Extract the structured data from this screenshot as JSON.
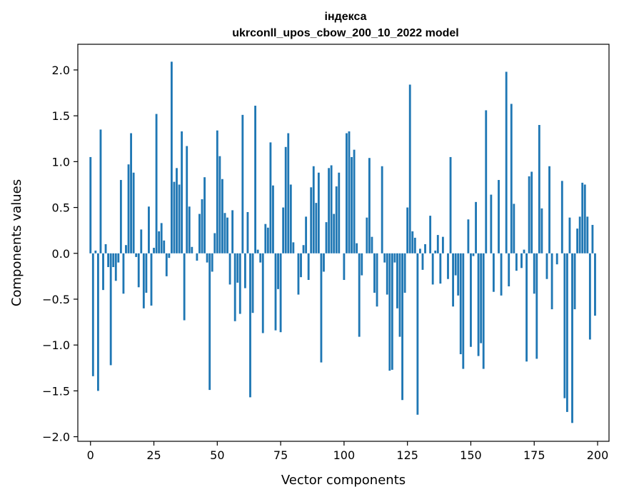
{
  "chart_data": {
    "type": "bar",
    "title_line1": "індекса",
    "title_line2": "ukrconll_upos_cbow_200_10_2022 model",
    "xlabel": "Vector components",
    "ylabel": "Components values",
    "xlim": [
      -5,
      204.5
    ],
    "ylim": [
      -2.05,
      2.28
    ],
    "xticks": [
      0,
      25,
      50,
      75,
      100,
      125,
      150,
      175,
      200
    ],
    "yticks": [
      -2.0,
      -1.5,
      -1.0,
      -0.5,
      0.0,
      0.5,
      1.0,
      1.5,
      2.0
    ],
    "ytick_labels": [
      "−2.0",
      "−1.5",
      "−1.0",
      "−0.5",
      "0.0",
      "0.5",
      "1.0",
      "1.5",
      "2.0"
    ],
    "bar_color": "#1f77b4",
    "grid": false,
    "values": [
      1.05,
      -1.34,
      0.03,
      -1.5,
      1.35,
      -0.4,
      0.1,
      -0.15,
      -1.22,
      -0.15,
      -0.3,
      -0.1,
      0.8,
      -0.44,
      0.09,
      0.97,
      1.31,
      0.88,
      -0.04,
      -0.37,
      0.26,
      -0.6,
      -0.43,
      0.51,
      -0.57,
      0.06,
      1.52,
      0.24,
      0.33,
      0.14,
      -0.25,
      -0.05,
      2.09,
      0.78,
      0.93,
      0.75,
      1.33,
      -0.73,
      1.17,
      0.51,
      0.07,
      0.0,
      -0.08,
      0.43,
      0.59,
      0.83,
      -0.1,
      -1.49,
      -0.2,
      0.22,
      1.34,
      1.06,
      0.81,
      0.44,
      0.39,
      -0.34,
      0.47,
      -0.74,
      -0.32,
      -0.66,
      1.51,
      -0.38,
      0.45,
      -1.57,
      -0.65,
      1.61,
      0.04,
      -0.1,
      -0.87,
      0.32,
      0.28,
      1.21,
      0.74,
      -0.84,
      -0.39,
      -0.86,
      0.5,
      1.16,
      1.31,
      0.75,
      0.12,
      0.0,
      -0.45,
      -0.26,
      0.09,
      0.4,
      -0.29,
      0.72,
      0.95,
      0.55,
      0.88,
      -1.19,
      -0.2,
      0.34,
      0.93,
      0.96,
      0.43,
      0.73,
      0.88,
      0.0,
      -0.29,
      1.31,
      1.33,
      1.05,
      1.13,
      0.11,
      -0.91,
      -0.24,
      0.0,
      0.39,
      1.04,
      0.18,
      -0.43,
      -0.58,
      0.0,
      0.95,
      -0.1,
      -0.45,
      -1.28,
      -1.27,
      -0.1,
      -0.6,
      -0.91,
      -1.6,
      -0.43,
      0.5,
      1.84,
      0.24,
      0.17,
      -1.76,
      0.05,
      -0.18,
      0.1,
      0.0,
      0.41,
      -0.34,
      0.03,
      0.2,
      -0.33,
      0.18,
      0.0,
      -0.28,
      1.05,
      -0.58,
      -0.24,
      -0.46,
      -1.1,
      -1.26,
      0.0,
      0.37,
      -1.02,
      -0.03,
      0.56,
      -1.12,
      -0.98,
      -1.26,
      1.56,
      0.0,
      0.64,
      -0.42,
      0.0,
      0.8,
      -0.46,
      0.0,
      1.98,
      -0.36,
      1.63,
      0.54,
      -0.19,
      0.0,
      -0.16,
      0.04,
      -1.18,
      0.84,
      0.89,
      -0.44,
      -1.15,
      1.4,
      0.49,
      0.0,
      -0.28,
      0.95,
      -0.61,
      0.0,
      -0.12,
      0.0,
      0.79,
      -1.58,
      -1.73,
      0.39,
      -1.85,
      -0.61,
      0.27,
      0.4,
      0.77,
      0.75,
      0.4,
      -0.94,
      0.31,
      -0.68
    ]
  }
}
